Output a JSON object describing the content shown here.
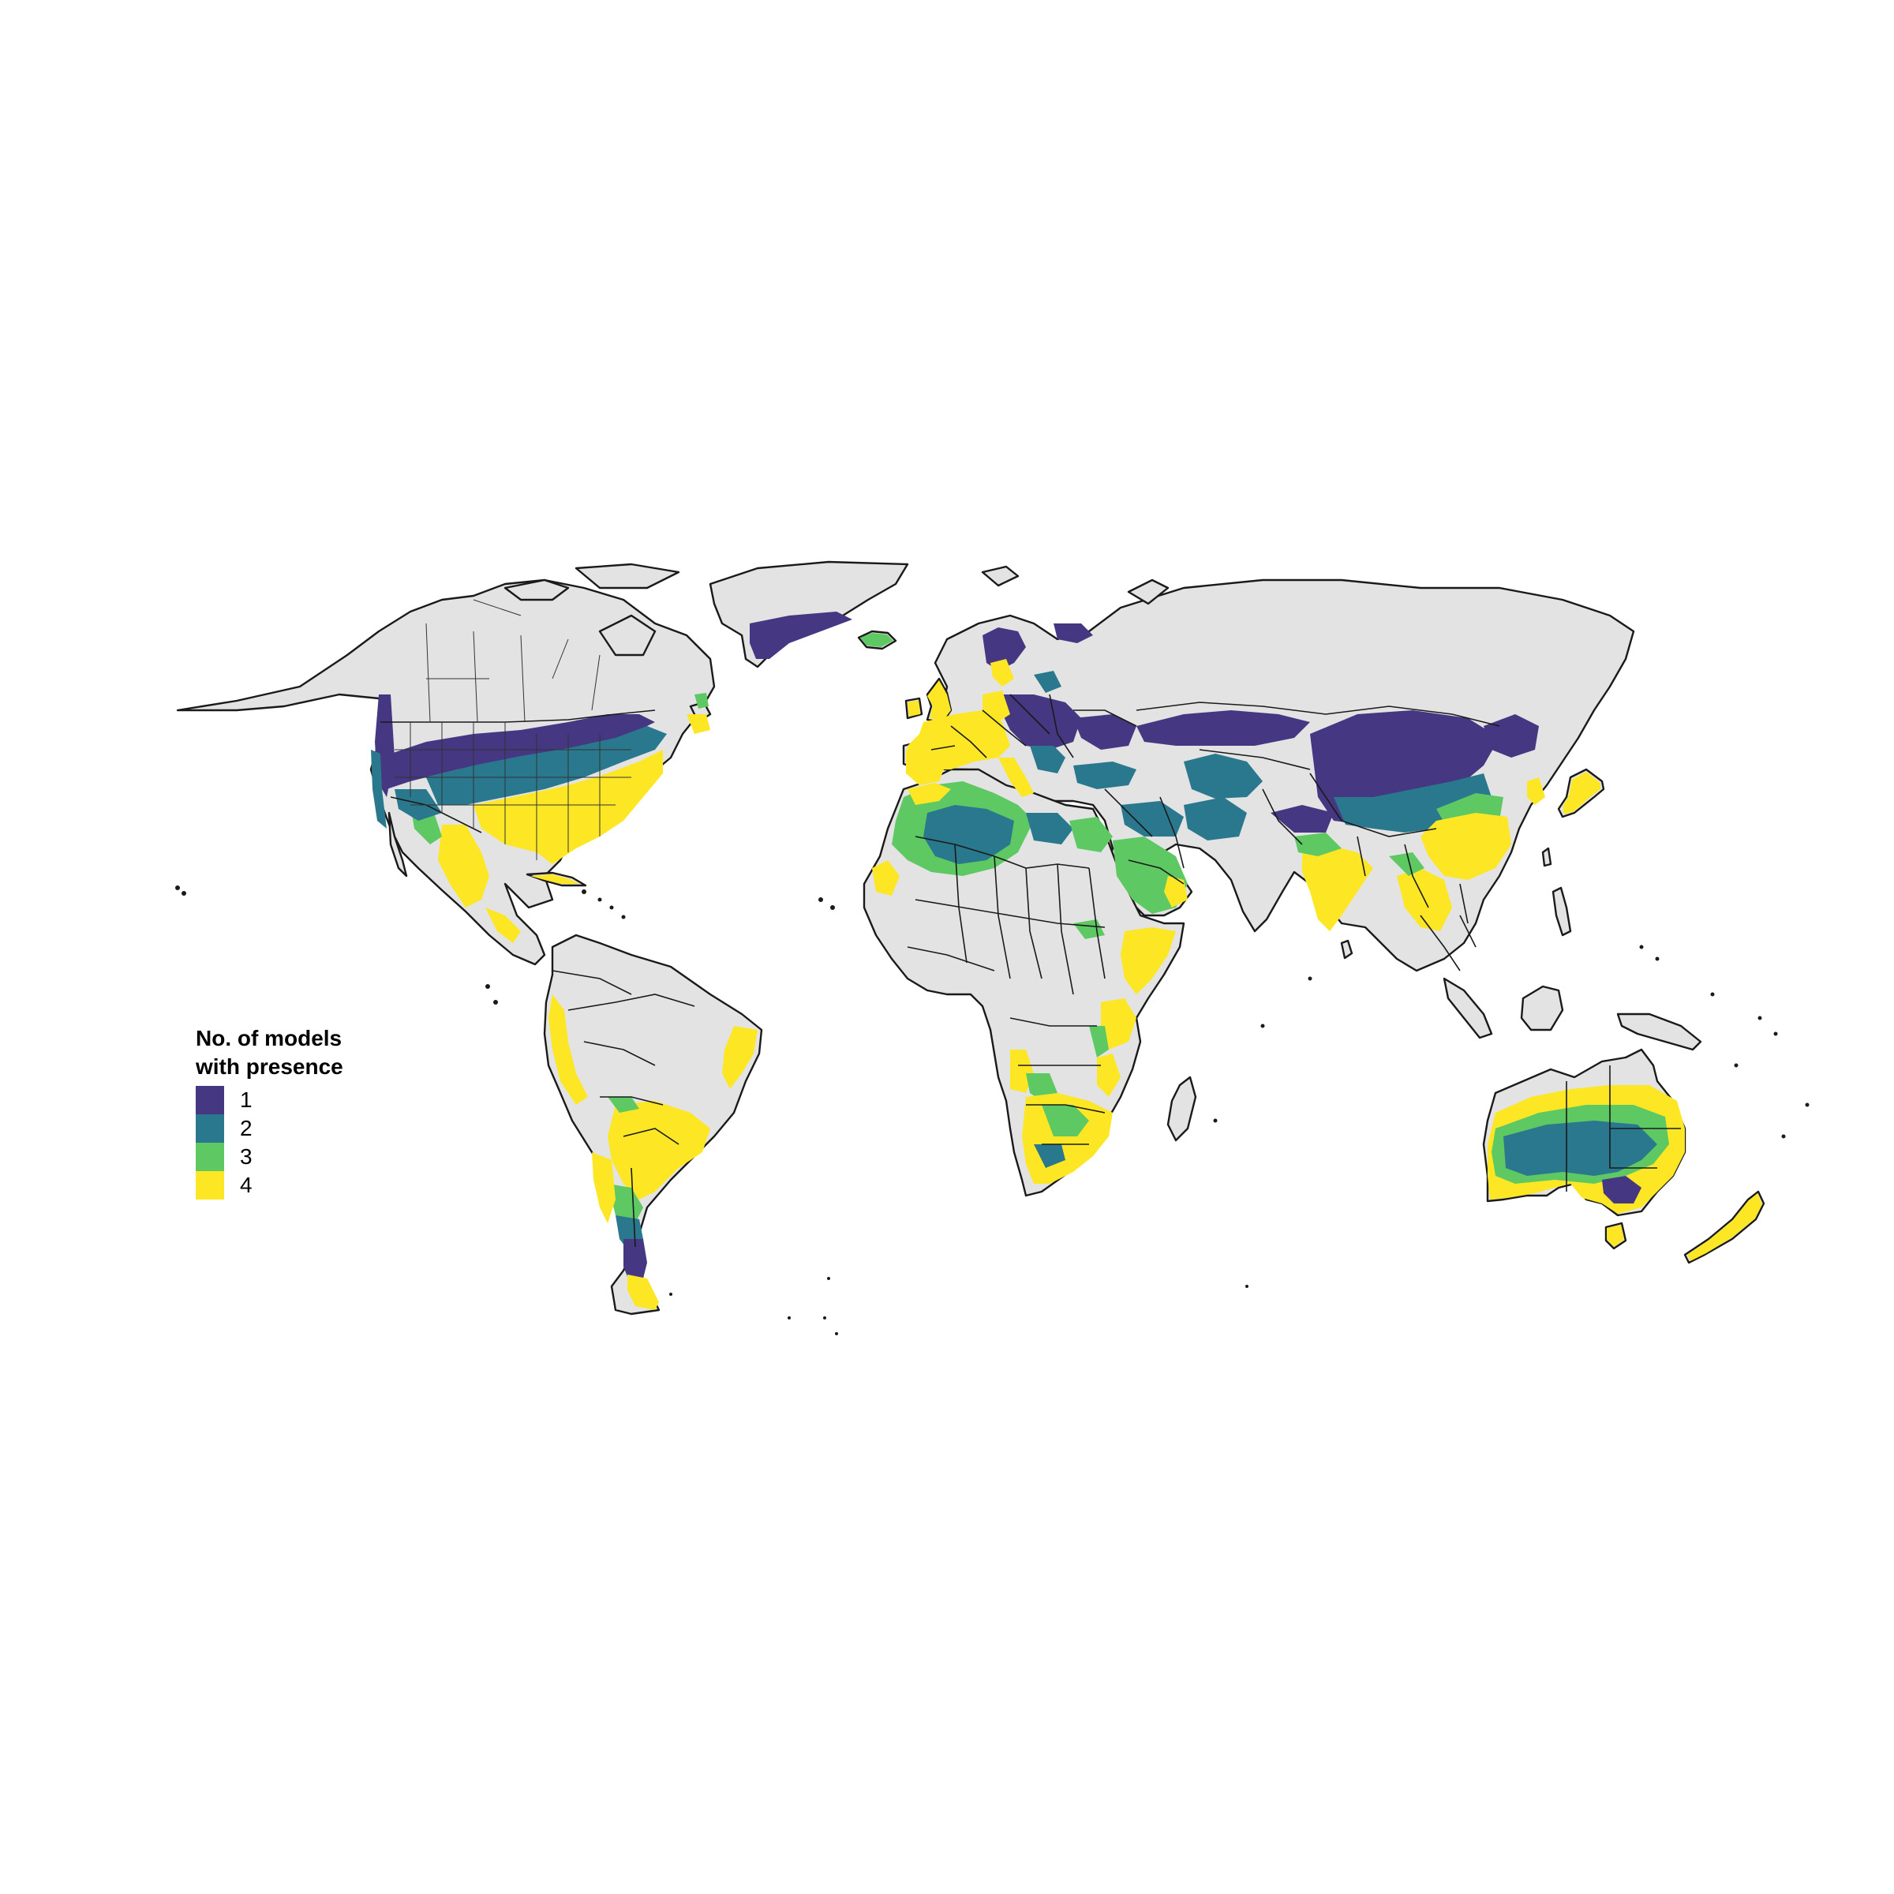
{
  "legend": {
    "title_line1": "No. of models",
    "title_line2": "with presence",
    "items": [
      {
        "label": "1",
        "color": "#453781"
      },
      {
        "label": "2",
        "color": "#2a788e"
      },
      {
        "label": "3",
        "color": "#5ec962"
      },
      {
        "label": "4",
        "color": "#fde725"
      }
    ]
  },
  "colors": {
    "land": "#e3e3e3",
    "outline": "#1a1a1a",
    "background": "#ffffff"
  }
}
